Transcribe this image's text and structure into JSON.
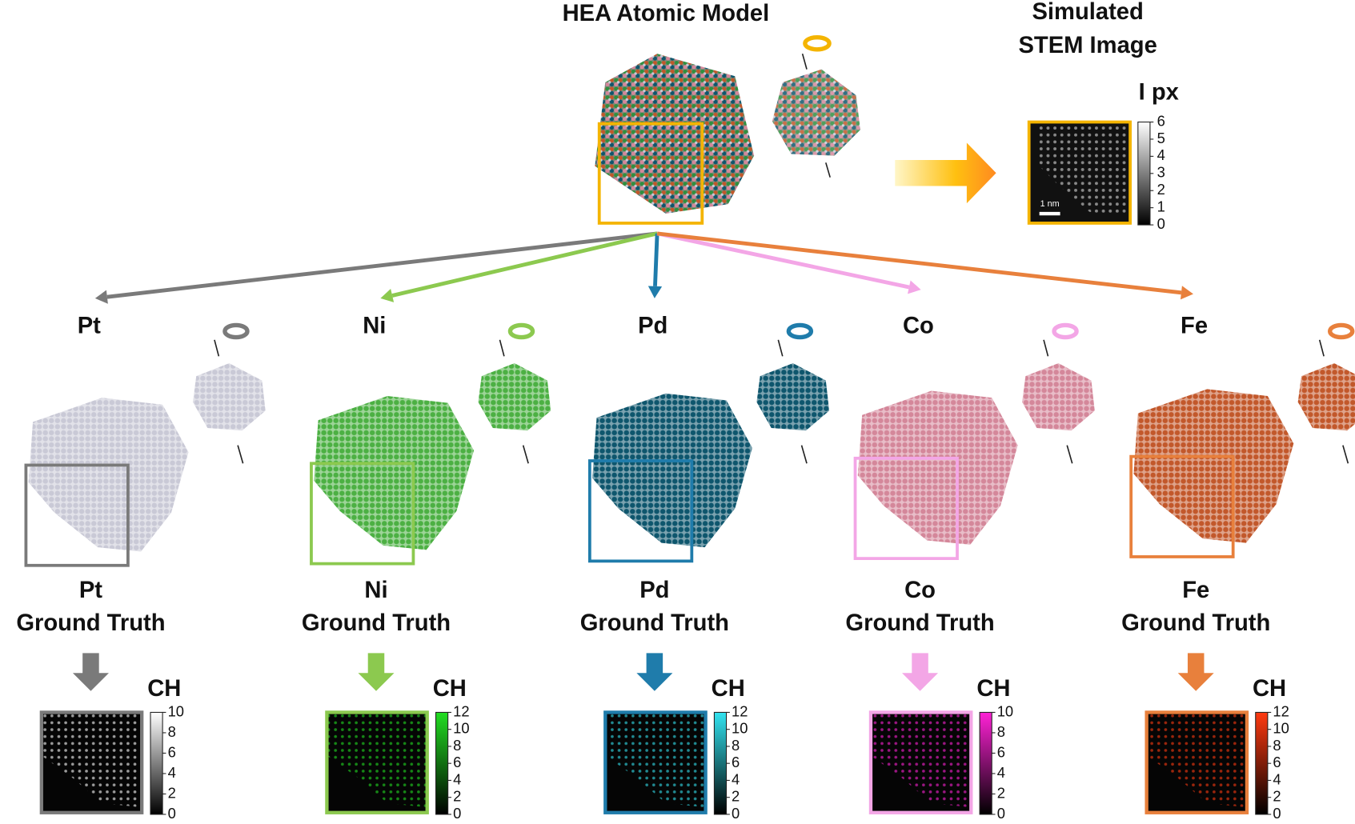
{
  "model": {
    "title": "HEA Atomic Model"
  },
  "stem": {
    "title_lines": [
      "Simulated",
      "STEM Image"
    ],
    "colorbar_label": "I px",
    "colorbar_ticks": [
      0,
      1,
      2,
      3,
      4,
      5,
      6
    ],
    "scale_bar": "1 nm"
  },
  "ground_truth_label": "Ground Truth",
  "channel_label": "CH",
  "elements": [
    {
      "name": "Pt",
      "color": "#7a7a7a",
      "atom_color": "#c9c9d6",
      "map_color": "#ffffff",
      "colorbar_ticks": [
        0,
        2,
        4,
        6,
        8,
        10
      ]
    },
    {
      "name": "Ni",
      "color": "#8cc94f",
      "atom_color": "#4cb043",
      "map_color": "#22dd22",
      "colorbar_ticks": [
        0,
        2,
        4,
        6,
        8,
        10,
        12
      ]
    },
    {
      "name": "Pd",
      "color": "#1f7cab",
      "atom_color": "#0e566d",
      "map_color": "#33e3f0",
      "colorbar_ticks": [
        0,
        2,
        4,
        6,
        8,
        10,
        12
      ]
    },
    {
      "name": "Co",
      "color": "#f3a6e6",
      "atom_color": "#d4879a",
      "map_color": "#ff22d6",
      "colorbar_ticks": [
        0,
        2,
        4,
        6,
        8,
        10
      ]
    },
    {
      "name": "Fe",
      "color": "#e8803c",
      "atom_color": "#c2582b",
      "map_color": "#ff3a10",
      "colorbar_ticks": [
        0,
        2,
        4,
        6,
        8,
        10,
        12
      ]
    }
  ]
}
